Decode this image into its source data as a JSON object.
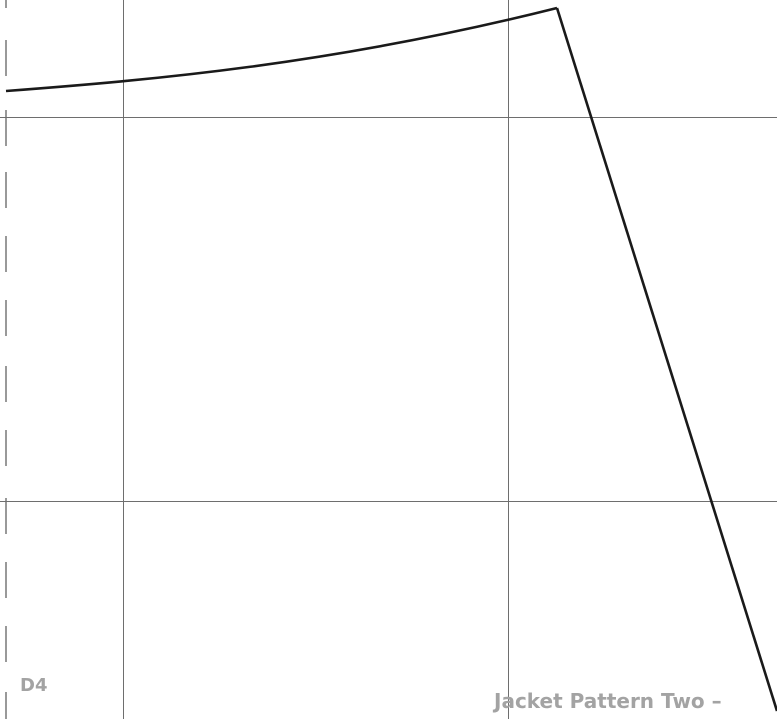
{
  "page": {
    "tile_id": "D4",
    "pattern_title": "Jacket Pattern Two –"
  },
  "colors": {
    "grid_line": "#6e6e6e",
    "pattern_line": "#1a1a1a",
    "label_text": "#a3a3a3",
    "cut_mark": "#333333"
  }
}
